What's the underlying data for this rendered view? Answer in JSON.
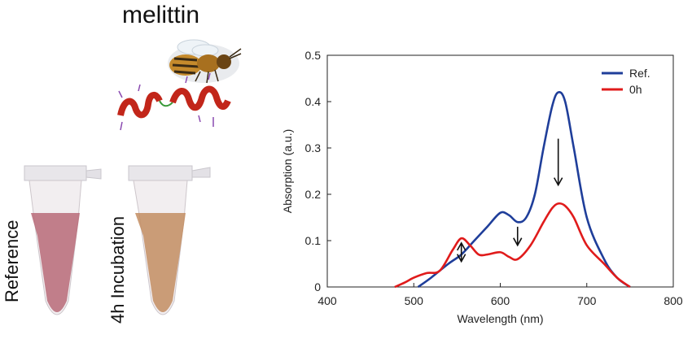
{
  "figure": {
    "title": "melittin",
    "tube_labels": [
      "Reference",
      "4h Incubation"
    ]
  },
  "colors": {
    "ref": "#1f3e9a",
    "h0": "#e01b1b",
    "tube_ref": "#b96a78",
    "tube_inc": "#c38d62"
  },
  "chart_data": {
    "type": "line",
    "title": "",
    "xlabel": "Wavelength (nm)",
    "ylabel": "Absorption (a.u.)",
    "xlim": [
      400,
      800
    ],
    "ylim": [
      0,
      0.5
    ],
    "xticks": [
      400,
      500,
      600,
      700,
      800
    ],
    "yticks": [
      0,
      0.1,
      0.2,
      0.3,
      0.4,
      0.5
    ],
    "ytick_labels": [
      "0",
      "0.1",
      "0.2",
      "0.3",
      "0.4",
      "0.5"
    ],
    "legend_position": "top-right",
    "series": [
      {
        "name": "Ref.",
        "color": "#1f3e9a",
        "x": [
          505,
          520,
          540,
          555,
          570,
          585,
          600,
          610,
          620,
          630,
          640,
          650,
          660,
          667,
          675,
          685,
          700,
          720,
          735,
          750
        ],
        "y": [
          0.0,
          0.02,
          0.05,
          0.07,
          0.1,
          0.13,
          0.16,
          0.155,
          0.14,
          0.15,
          0.2,
          0.3,
          0.39,
          0.42,
          0.4,
          0.3,
          0.15,
          0.06,
          0.02,
          0.0
        ]
      },
      {
        "name": "0h",
        "color": "#e01b1b",
        "x": [
          478,
          490,
          500,
          515,
          530,
          545,
          555,
          565,
          575,
          585,
          600,
          610,
          620,
          635,
          650,
          660,
          667,
          675,
          685,
          700,
          720,
          735,
          750
        ],
        "y": [
          0.0,
          0.01,
          0.02,
          0.03,
          0.035,
          0.08,
          0.105,
          0.09,
          0.07,
          0.07,
          0.075,
          0.065,
          0.06,
          0.09,
          0.14,
          0.17,
          0.18,
          0.175,
          0.15,
          0.09,
          0.05,
          0.02,
          0.0
        ]
      }
    ],
    "annotations": [
      {
        "type": "arrow-down",
        "x": 667,
        "y_from": 0.32,
        "y_to": 0.22
      },
      {
        "type": "arrow-down",
        "x": 620,
        "y_from": 0.13,
        "y_to": 0.09
      },
      {
        "type": "arrow-updown",
        "x": 555,
        "y_from": 0.095,
        "y_to": 0.055
      }
    ]
  }
}
